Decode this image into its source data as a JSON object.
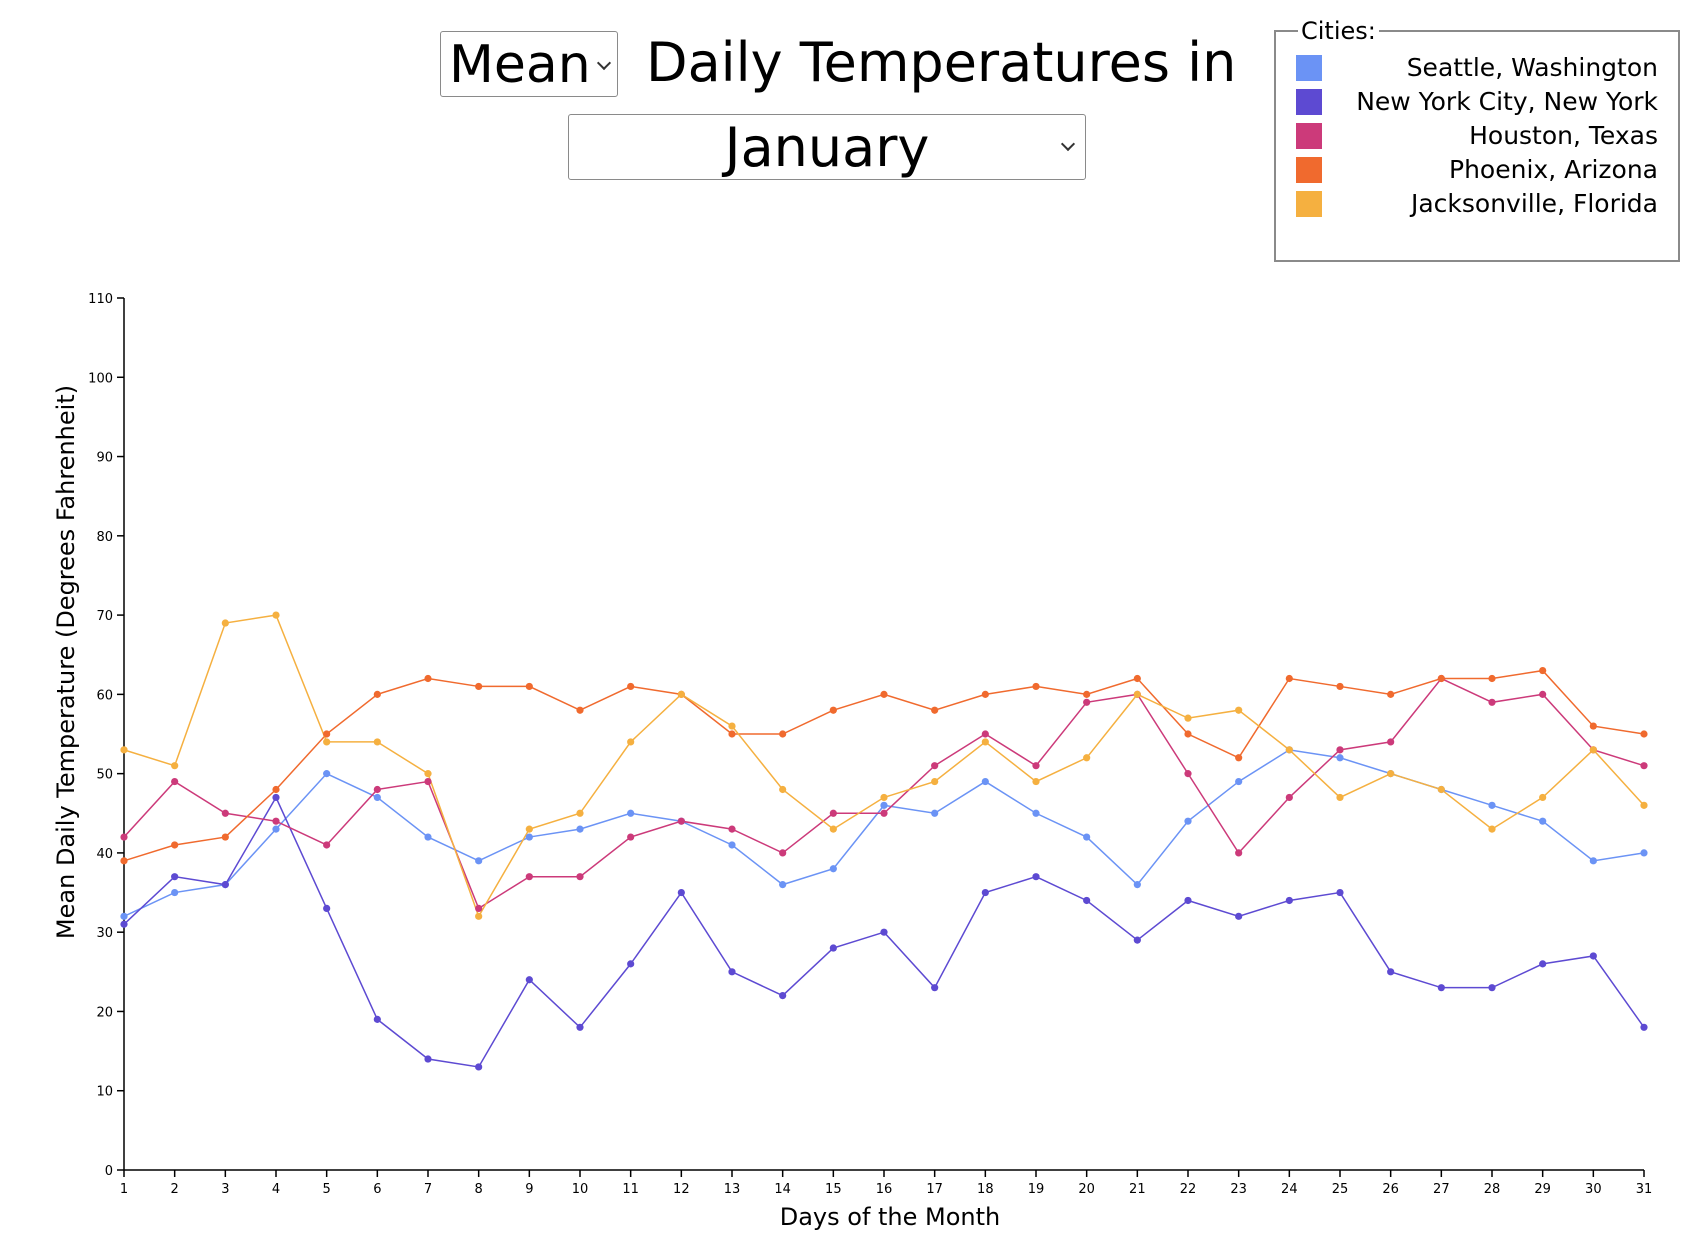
{
  "header": {
    "stat_select": "Mean",
    "title": "Daily Temperatures in",
    "month_select": "January"
  },
  "legend": {
    "title": "Cities:",
    "items": [
      {
        "name": "Seattle, Washington",
        "color": "#6b93f5"
      },
      {
        "name": "New York City, New York",
        "color": "#5d4ad2"
      },
      {
        "name": "Houston, Texas",
        "color": "#cc3a7a"
      },
      {
        "name": "Phoenix, Arizona",
        "color": "#f06a2e"
      },
      {
        "name": "Jacksonville, Florida",
        "color": "#f5b040"
      }
    ]
  },
  "chart_data": {
    "type": "line",
    "xlabel": "Days of the Month",
    "ylabel": "Mean Daily Temperature (Degrees Fahrenheit)",
    "x": [
      1,
      2,
      3,
      4,
      5,
      6,
      7,
      8,
      9,
      10,
      11,
      12,
      13,
      14,
      15,
      16,
      17,
      18,
      19,
      20,
      21,
      22,
      23,
      24,
      25,
      26,
      27,
      28,
      29,
      30,
      31
    ],
    "xlim": [
      1,
      31
    ],
    "ylim": [
      0,
      110
    ],
    "yticks": [
      0,
      10,
      20,
      30,
      40,
      50,
      60,
      70,
      80,
      90,
      100,
      110
    ],
    "grid": false,
    "legend_position": "top-right",
    "series": [
      {
        "name": "Seattle, Washington",
        "color": "#6b93f5",
        "values": [
          32,
          35,
          36,
          43,
          50,
          47,
          42,
          39,
          42,
          43,
          45,
          44,
          41,
          36,
          38,
          46,
          45,
          49,
          45,
          42,
          36,
          44,
          49,
          53,
          52,
          50,
          48,
          46,
          44,
          39,
          40
        ]
      },
      {
        "name": "New York City, New York",
        "color": "#5d4ad2",
        "values": [
          31,
          37,
          36,
          47,
          33,
          19,
          14,
          13,
          24,
          18,
          26,
          35,
          25,
          22,
          28,
          30,
          23,
          35,
          37,
          34,
          29,
          34,
          32,
          34,
          35,
          25,
          23,
          23,
          26,
          27,
          18
        ]
      },
      {
        "name": "Houston, Texas",
        "color": "#cc3a7a",
        "values": [
          42,
          49,
          45,
          44,
          41,
          48,
          49,
          33,
          37,
          37,
          42,
          44,
          43,
          40,
          45,
          45,
          51,
          55,
          51,
          59,
          60,
          50,
          40,
          47,
          53,
          54,
          62,
          59,
          60,
          53,
          51
        ]
      },
      {
        "name": "Phoenix, Arizona",
        "color": "#f06a2e",
        "values": [
          39,
          41,
          42,
          48,
          55,
          60,
          62,
          61,
          61,
          58,
          61,
          60,
          55,
          55,
          58,
          60,
          58,
          60,
          61,
          60,
          62,
          55,
          52,
          62,
          61,
          60,
          62,
          62,
          63,
          56,
          55
        ]
      },
      {
        "name": "Jacksonville, Florida",
        "color": "#f5b040",
        "values": [
          53,
          51,
          69,
          70,
          54,
          54,
          50,
          32,
          43,
          45,
          54,
          60,
          56,
          48,
          43,
          47,
          49,
          54,
          49,
          52,
          60,
          57,
          58,
          53,
          47,
          50,
          48,
          43,
          47,
          53,
          46
        ]
      }
    ]
  }
}
